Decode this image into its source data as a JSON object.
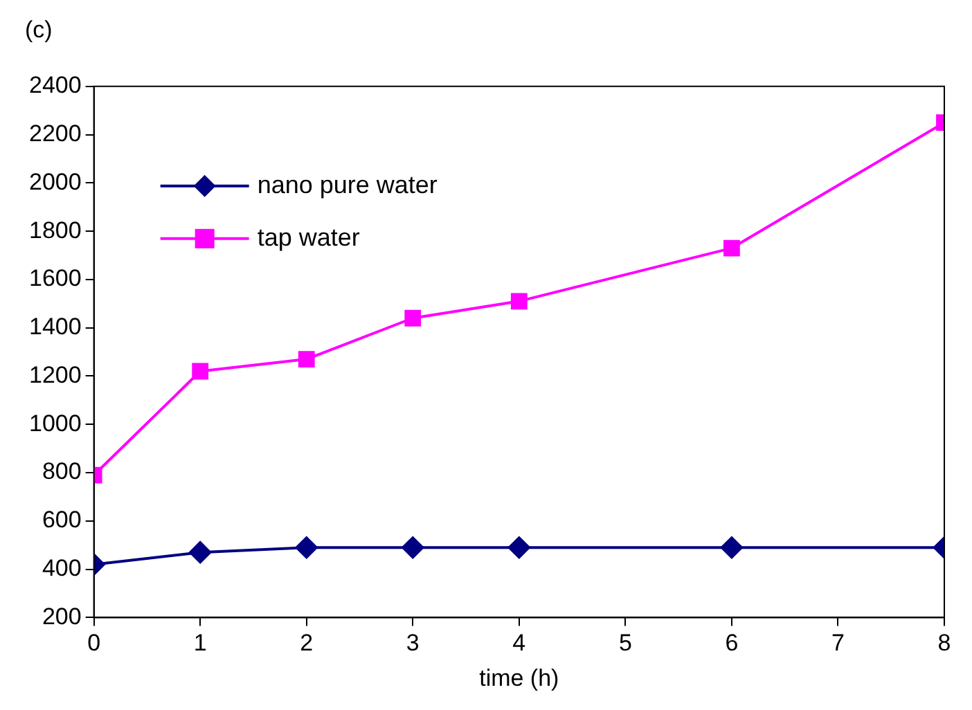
{
  "chart_data": {
    "type": "line",
    "title": "(c)",
    "xlabel": "time (h)",
    "x": [
      0,
      1,
      2,
      3,
      4,
      6,
      8
    ],
    "series": [
      {
        "name": "nano pure water",
        "color": "#000080",
        "marker": "diamond",
        "values": [
          420,
          470,
          490,
          490,
          490,
          490,
          490
        ]
      },
      {
        "name": "tap water",
        "color": "#ff00ff",
        "marker": "square",
        "values": [
          790,
          1220,
          1270,
          1440,
          1510,
          1730,
          2250
        ]
      }
    ],
    "xlim": [
      0,
      8
    ],
    "xticks": [
      0,
      1,
      2,
      3,
      4,
      5,
      6,
      7,
      8
    ],
    "ylim": [
      200,
      2400
    ],
    "yticks": [
      200,
      400,
      600,
      800,
      1000,
      1200,
      1400,
      1600,
      1800,
      2000,
      2200,
      2400
    ],
    "grid": false,
    "legend": "top left",
    "line_style": "solid"
  }
}
